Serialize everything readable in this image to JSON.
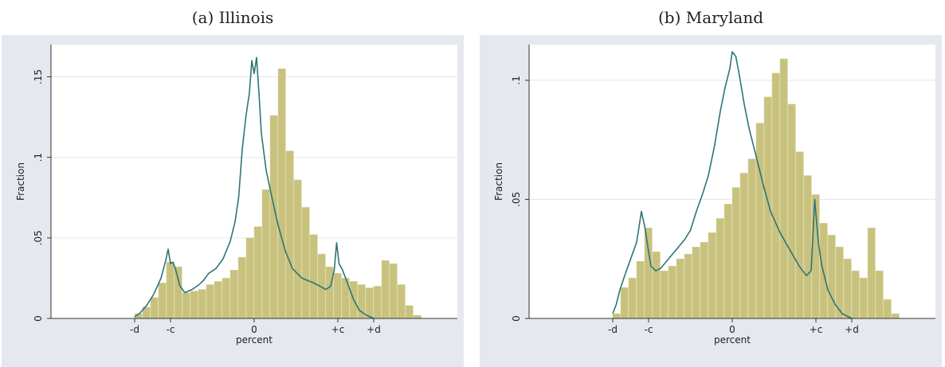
{
  "figures": [
    {
      "id": "a",
      "caption": "(a) Illinois",
      "chart_data": {
        "type": "bar",
        "xlabel": "percent",
        "ylabel": "Fraction",
        "x_tick_labels": [
          "-d",
          "-c",
          "0",
          "+c",
          "+d"
        ],
        "x_tick_positions": [
          -10,
          -7,
          0,
          7,
          10
        ],
        "xlim": [
          -17,
          17
        ],
        "y_ticks": [
          0,
          0.05,
          0.1,
          0.15
        ],
        "y_tick_labels": [
          "0",
          ".05",
          ".1",
          ".15"
        ],
        "ylim": [
          0,
          0.17
        ],
        "grid": "horizontal",
        "background_color": "#e6e8f0",
        "bar_color": "#c8c27e",
        "line_color": "#2e7575",
        "bins": {
          "start": -10,
          "width": 0.6667,
          "values": [
            0.003,
            0.007,
            0.013,
            0.022,
            0.035,
            0.032,
            0.016,
            0.017,
            0.018,
            0.021,
            0.023,
            0.025,
            0.03,
            0.038,
            0.05,
            0.057,
            0.08,
            0.126,
            0.155,
            0.104,
            0.086,
            0.069,
            0.052,
            0.04,
            0.032,
            0.028,
            0.025,
            0.023,
            0.021,
            0.019,
            0.02,
            0.036,
            0.034,
            0.021,
            0.008,
            0.002
          ]
        },
        "density_line": {
          "x": [
            -10,
            -9.6,
            -9,
            -8.4,
            -7.8,
            -7.4,
            -7.2,
            -7.0,
            -6.8,
            -6.6,
            -6.2,
            -5.8,
            -5.2,
            -4.6,
            -4.2,
            -3.8,
            -3.2,
            -2.6,
            -2.0,
            -1.6,
            -1.3,
            -1.0,
            -0.7,
            -0.4,
            -0.2,
            0.0,
            0.2,
            0.4,
            0.6,
            1.0,
            1.4,
            2.0,
            2.6,
            3.2,
            4.0,
            5.0,
            6.0,
            6.4,
            6.7,
            6.9,
            7.1,
            7.4,
            7.8,
            8.3,
            8.8,
            9.4,
            10.0
          ],
          "y": [
            0.001,
            0.003,
            0.008,
            0.015,
            0.025,
            0.036,
            0.043,
            0.034,
            0.035,
            0.031,
            0.02,
            0.016,
            0.018,
            0.021,
            0.024,
            0.028,
            0.031,
            0.037,
            0.048,
            0.06,
            0.075,
            0.105,
            0.125,
            0.14,
            0.16,
            0.152,
            0.162,
            0.14,
            0.115,
            0.092,
            0.078,
            0.058,
            0.042,
            0.031,
            0.025,
            0.022,
            0.018,
            0.02,
            0.03,
            0.047,
            0.034,
            0.03,
            0.022,
            0.012,
            0.005,
            0.002,
            0.0
          ]
        }
      }
    },
    {
      "id": "b",
      "caption": "(b) Maryland",
      "chart_data": {
        "type": "bar",
        "xlabel": "percent",
        "ylabel": "Fraction",
        "x_tick_labels": [
          "-d",
          "-c",
          "0",
          "+c",
          "+d"
        ],
        "x_tick_positions": [
          -10,
          -7,
          0,
          7,
          10
        ],
        "xlim": [
          -17,
          17
        ],
        "y_ticks": [
          0,
          0.05,
          0.1
        ],
        "y_tick_labels": [
          "0",
          ".05",
          ".1"
        ],
        "ylim": [
          0,
          0.115
        ],
        "grid": "horizontal",
        "background_color": "#e6e8f0",
        "bar_color": "#c8c27e",
        "line_color": "#2e7575",
        "bins": {
          "start": -10,
          "width": 0.6667,
          "values": [
            0.002,
            0.013,
            0.017,
            0.024,
            0.038,
            0.028,
            0.02,
            0.022,
            0.025,
            0.027,
            0.03,
            0.032,
            0.036,
            0.042,
            0.048,
            0.055,
            0.061,
            0.067,
            0.082,
            0.093,
            0.103,
            0.109,
            0.09,
            0.07,
            0.06,
            0.052,
            0.04,
            0.035,
            0.03,
            0.025,
            0.02,
            0.017,
            0.038,
            0.02,
            0.008,
            0.002
          ]
        },
        "density_line": {
          "x": [
            -10,
            -9.7,
            -9.4,
            -9.0,
            -8.5,
            -8.0,
            -7.6,
            -7.3,
            -7.0,
            -6.8,
            -6.4,
            -6.0,
            -5.5,
            -5.0,
            -4.5,
            -4.0,
            -3.5,
            -3.0,
            -2.5,
            -2.0,
            -1.5,
            -1.0,
            -0.6,
            -0.2,
            0.0,
            0.3,
            0.6,
            1.0,
            1.4,
            2.0,
            2.6,
            3.2,
            4.0,
            4.8,
            5.6,
            6.2,
            6.6,
            6.9,
            7.2,
            7.5,
            8.0,
            8.6,
            9.2,
            10.0
          ],
          "y": [
            0.002,
            0.006,
            0.012,
            0.018,
            0.025,
            0.032,
            0.045,
            0.038,
            0.028,
            0.022,
            0.02,
            0.021,
            0.024,
            0.027,
            0.03,
            0.033,
            0.037,
            0.045,
            0.052,
            0.06,
            0.072,
            0.087,
            0.097,
            0.105,
            0.112,
            0.11,
            0.102,
            0.09,
            0.08,
            0.068,
            0.056,
            0.045,
            0.036,
            0.029,
            0.022,
            0.018,
            0.02,
            0.05,
            0.032,
            0.022,
            0.012,
            0.006,
            0.002,
            0.0
          ]
        }
      }
    }
  ]
}
